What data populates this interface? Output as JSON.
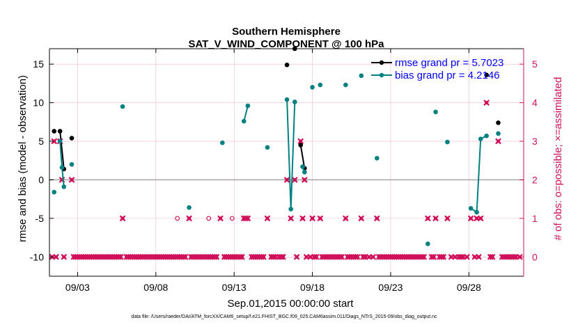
{
  "chart_data": {
    "type": "scatter",
    "title": "Southern Hemisphere",
    "subtitle": "SAT_V_WIND_COMPONENT @ 100 hPa",
    "xlabel": "Sep.01,2015 00:00:00 start",
    "ylabel": "rmse and bias (model - observation)",
    "y2label": "# of obs: o=possible; ×=assimilated",
    "footnote": "data file: /Users/raeder/DAI/ATM_forcXX/CAM6_setup/f.e21.FHIST_BGC.f09_025.CAM6assim.011/Diags_NTrS_2015-09/obs_diag_output.nc",
    "xlim": [
      1.2,
      31.5
    ],
    "ylim": [
      -12.5,
      17
    ],
    "y2lim": [
      -0.5,
      5.4
    ],
    "x_ticks": [
      3,
      8,
      13,
      18,
      23,
      28
    ],
    "x_tick_labels": [
      "09/03",
      "09/08",
      "09/13",
      "09/18",
      "09/23",
      "09/28"
    ],
    "y_ticks": [
      -10,
      -5,
      0,
      5,
      10,
      15
    ],
    "y_tick_labels": [
      "-10",
      "-5",
      "0",
      "5",
      "10",
      "15"
    ],
    "y2_ticks": [
      0,
      1,
      2,
      3,
      4,
      5
    ],
    "y2_tick_labels": [
      "0",
      "1",
      "2",
      "3",
      "4",
      "5"
    ],
    "grid": true,
    "legend_position": "top-right",
    "legend": [
      {
        "label": "rmse grand pr = 5.7023",
        "color": "#000000"
      },
      {
        "label": "bias grand pr = 4.2146",
        "color": "#008080"
      }
    ],
    "colors": {
      "rmse": "#000000",
      "bias": "#008080",
      "obs": "#d0105a",
      "zero": "#aaaaaa",
      "grid": "#f0b8c8"
    },
    "series": [
      {
        "name": "rmse",
        "segments": [
          [
            [
              1.5,
              6.3
            ]
          ],
          [
            [
              1.875,
              6.3
            ],
            [
              2.125,
              1.4
            ]
          ],
          [
            [
              2.625,
              5.4
            ]
          ],
          [
            [
              16.375,
              14.9
            ]
          ],
          [
            [
              16.875,
              17.0
            ]
          ],
          [
            [
              17.25,
              4.5
            ],
            [
              17.5,
              1.5
            ]
          ],
          [
            [
              29.125,
              13.6
            ]
          ],
          [
            [
              29.875,
              7.4
            ]
          ]
        ]
      },
      {
        "name": "bias",
        "segments": [
          [
            [
              1.5,
              -1.6
            ]
          ],
          [
            [
              1.875,
              5.0
            ],
            [
              2.0,
              1.6
            ],
            [
              2.125,
              -0.9
            ]
          ],
          [
            [
              2.625,
              2.0
            ]
          ],
          [
            [
              5.875,
              9.5
            ]
          ],
          [
            [
              10.125,
              -3.6
            ]
          ],
          [
            [
              12.25,
              4.8
            ]
          ],
          [
            [
              13.625,
              7.6
            ],
            [
              13.875,
              9.6
            ]
          ],
          [
            [
              15.125,
              4.2
            ]
          ],
          [
            [
              16.375,
              10.4
            ],
            [
              16.625,
              -3.8
            ],
            [
              16.875,
              10.1
            ]
          ],
          [
            [
              17.375,
              1.7
            ],
            [
              17.5,
              1.0
            ]
          ],
          [
            [
              18.0,
              12.0
            ]
          ],
          [
            [
              18.5,
              12.3
            ]
          ],
          [
            [
              20.125,
              12.3
            ]
          ],
          [
            [
              21.125,
              13.5
            ]
          ],
          [
            [
              22.125,
              2.8
            ]
          ],
          [
            [
              25.375,
              -8.3
            ]
          ],
          [
            [
              25.875,
              8.8
            ]
          ],
          [
            [
              26.625,
              4.9
            ]
          ],
          [
            [
              28.125,
              -3.7
            ],
            [
              28.5,
              -4.2
            ],
            [
              28.75,
              5.3
            ],
            [
              29.125,
              5.7
            ]
          ],
          [
            [
              29.875,
              6.0
            ]
          ]
        ]
      }
    ],
    "obs_assimilated": [
      [
        1.375,
        0
      ],
      [
        1.5,
        3
      ],
      [
        1.625,
        0
      ],
      [
        1.875,
        3
      ],
      [
        2.0,
        2
      ],
      [
        2.125,
        0
      ],
      [
        2.625,
        2
      ],
      [
        2.75,
        0
      ],
      [
        2.875,
        0
      ],
      [
        3.0,
        0
      ],
      [
        3.125,
        0
      ],
      [
        3.25,
        0
      ],
      [
        3.375,
        0
      ],
      [
        3.5,
        0
      ],
      [
        3.625,
        0
      ],
      [
        3.75,
        0
      ],
      [
        3.875,
        0
      ],
      [
        4.0,
        0
      ],
      [
        4.125,
        0
      ],
      [
        4.25,
        0
      ],
      [
        4.375,
        0
      ],
      [
        4.5,
        0
      ],
      [
        4.625,
        0
      ],
      [
        4.75,
        0
      ],
      [
        4.875,
        0
      ],
      [
        5.0,
        0
      ],
      [
        5.125,
        0
      ],
      [
        5.25,
        0
      ],
      [
        5.375,
        0
      ],
      [
        5.5,
        0
      ],
      [
        5.625,
        0
      ],
      [
        5.75,
        0
      ],
      [
        5.875,
        1
      ],
      [
        6.125,
        0
      ],
      [
        6.25,
        0
      ],
      [
        6.375,
        0
      ],
      [
        6.5,
        0
      ],
      [
        6.625,
        0
      ],
      [
        6.75,
        0
      ],
      [
        6.875,
        0
      ],
      [
        7.0,
        0
      ],
      [
        7.125,
        0
      ],
      [
        7.25,
        0
      ],
      [
        7.375,
        0
      ],
      [
        7.5,
        0
      ],
      [
        7.625,
        0
      ],
      [
        7.75,
        0
      ],
      [
        7.875,
        0
      ],
      [
        8.0,
        0
      ],
      [
        8.125,
        0
      ],
      [
        8.25,
        0
      ],
      [
        8.375,
        0
      ],
      [
        8.5,
        0
      ],
      [
        8.625,
        0
      ],
      [
        8.75,
        0
      ],
      [
        8.875,
        0
      ],
      [
        9.0,
        0
      ],
      [
        9.125,
        0
      ],
      [
        9.25,
        0
      ],
      [
        9.375,
        0
      ],
      [
        9.5,
        0
      ],
      [
        9.625,
        0
      ],
      [
        9.75,
        0
      ],
      [
        9.875,
        0
      ],
      [
        10.125,
        1
      ],
      [
        10.25,
        0
      ],
      [
        10.375,
        0
      ],
      [
        10.5,
        0
      ],
      [
        10.625,
        0
      ],
      [
        10.75,
        0
      ],
      [
        10.875,
        0
      ],
      [
        11.0,
        0
      ],
      [
        11.125,
        0
      ],
      [
        11.25,
        0
      ],
      [
        11.375,
        0
      ],
      [
        11.5,
        0
      ],
      [
        11.625,
        0
      ],
      [
        11.75,
        0
      ],
      [
        11.875,
        0
      ],
      [
        12.125,
        1
      ],
      [
        12.375,
        0
      ],
      [
        12.5,
        0
      ],
      [
        12.625,
        0
      ],
      [
        12.75,
        0
      ],
      [
        12.875,
        0
      ],
      [
        13.0,
        0
      ],
      [
        13.125,
        0
      ],
      [
        13.25,
        0
      ],
      [
        13.375,
        0
      ],
      [
        13.5,
        0
      ],
      [
        13.625,
        1
      ],
      [
        13.75,
        1
      ],
      [
        13.875,
        1
      ],
      [
        14.125,
        0
      ],
      [
        14.25,
        0
      ],
      [
        14.375,
        0
      ],
      [
        14.5,
        0
      ],
      [
        14.625,
        0
      ],
      [
        14.75,
        0
      ],
      [
        14.875,
        0
      ],
      [
        15.125,
        1
      ],
      [
        15.375,
        0
      ],
      [
        15.5,
        0
      ],
      [
        15.625,
        0
      ],
      [
        15.875,
        0
      ],
      [
        16.0,
        0
      ],
      [
        16.125,
        0
      ],
      [
        16.375,
        2
      ],
      [
        16.625,
        1
      ],
      [
        16.875,
        2
      ],
      [
        17.0,
        0
      ],
      [
        17.25,
        3
      ],
      [
        17.375,
        1
      ],
      [
        17.5,
        2
      ],
      [
        17.625,
        0
      ],
      [
        17.875,
        0
      ],
      [
        18.0,
        1
      ],
      [
        18.125,
        0
      ],
      [
        18.25,
        0
      ],
      [
        18.5,
        1
      ],
      [
        18.625,
        0
      ],
      [
        18.75,
        0
      ],
      [
        18.875,
        0
      ],
      [
        19.0,
        0
      ],
      [
        19.125,
        0
      ],
      [
        19.25,
        0
      ],
      [
        19.375,
        0
      ],
      [
        19.5,
        0
      ],
      [
        19.625,
        0
      ],
      [
        19.75,
        0
      ],
      [
        19.875,
        0
      ],
      [
        20.125,
        1
      ],
      [
        20.25,
        0
      ],
      [
        20.375,
        0
      ],
      [
        20.5,
        0
      ],
      [
        20.625,
        0
      ],
      [
        20.75,
        0
      ],
      [
        20.875,
        0
      ],
      [
        21.125,
        1
      ],
      [
        21.25,
        0
      ],
      [
        21.375,
        0
      ],
      [
        21.625,
        0
      ],
      [
        21.875,
        0
      ],
      [
        22.125,
        1
      ],
      [
        22.25,
        0
      ],
      [
        22.375,
        0
      ],
      [
        22.5,
        0
      ],
      [
        22.625,
        0
      ],
      [
        22.75,
        0
      ],
      [
        22.875,
        0
      ],
      [
        23.0,
        0
      ],
      [
        23.125,
        0
      ],
      [
        23.25,
        0
      ],
      [
        23.375,
        0
      ],
      [
        23.5,
        0
      ],
      [
        23.625,
        0
      ],
      [
        23.75,
        0
      ],
      [
        23.875,
        0
      ],
      [
        24.0,
        0
      ],
      [
        24.125,
        0
      ],
      [
        24.25,
        0
      ],
      [
        24.375,
        0
      ],
      [
        24.5,
        0
      ],
      [
        24.625,
        0
      ],
      [
        24.75,
        0
      ],
      [
        24.875,
        0
      ],
      [
        25.0,
        0
      ],
      [
        25.125,
        0
      ],
      [
        25.375,
        1
      ],
      [
        25.625,
        0
      ],
      [
        25.75,
        0
      ],
      [
        25.875,
        1
      ],
      [
        26.125,
        0
      ],
      [
        26.25,
        0
      ],
      [
        26.375,
        0
      ],
      [
        26.625,
        1
      ],
      [
        26.875,
        0
      ],
      [
        27.125,
        0
      ],
      [
        27.375,
        0
      ],
      [
        27.5,
        0
      ],
      [
        27.625,
        0
      ],
      [
        27.875,
        0
      ],
      [
        28.125,
        1
      ],
      [
        28.375,
        0
      ],
      [
        28.5,
        1
      ],
      [
        28.625,
        0
      ],
      [
        28.75,
        1
      ],
      [
        29.125,
        4
      ],
      [
        29.375,
        0
      ],
      [
        29.5,
        0
      ],
      [
        29.875,
        3
      ],
      [
        30.125,
        0
      ],
      [
        30.25,
        0
      ],
      [
        30.375,
        0
      ],
      [
        30.5,
        0
      ],
      [
        30.625,
        0
      ],
      [
        30.75,
        0
      ],
      [
        30.875,
        0
      ],
      [
        31.0,
        0
      ],
      [
        31.25,
        0
      ]
    ],
    "obs_possible_only": [
      [
        9.375,
        1
      ],
      [
        11.375,
        1
      ],
      [
        12.875,
        1
      ]
    ]
  }
}
